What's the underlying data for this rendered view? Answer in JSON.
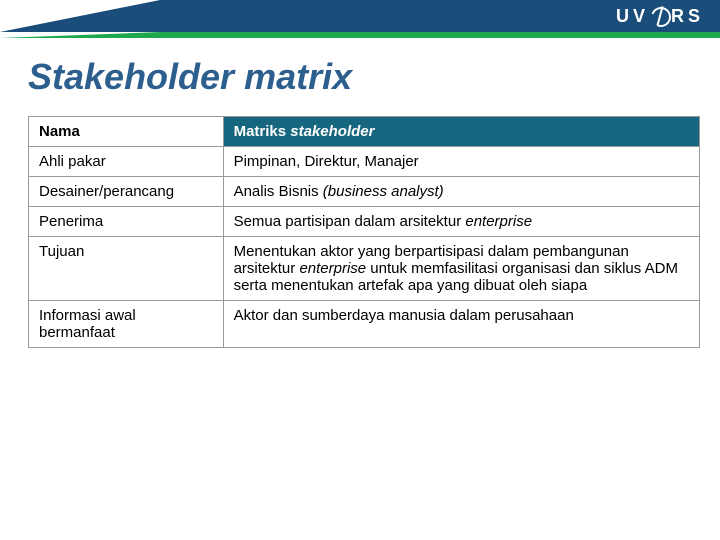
{
  "header": {
    "logo_text": "UV",
    "logo_suffix": "RS",
    "title": "Stakeholder matrix"
  },
  "colors": {
    "banner_blue": "#1a4d7a",
    "banner_green": "#1ea84e",
    "table_header_bg": "#17667f",
    "title_color": "#2d5f8e",
    "border_color": "#999999",
    "background": "#ffffff",
    "text": "#000000",
    "header_text": "#ffffff"
  },
  "table": {
    "head": {
      "col1": "Nama",
      "col2": "Matriks ",
      "col2_italic": "stakeholder"
    },
    "rows": [
      {
        "label": "Ahli pakar",
        "value": "Pimpinan, Direktur, Manajer"
      },
      {
        "label": "Desainer/perancang",
        "value_pre": "Analis Bisnis ",
        "value_italic": "(business analyst)"
      },
      {
        "label": "Penerima",
        "value_pre": "Semua partisipan dalam arsitektur ",
        "value_italic": "enterprise"
      },
      {
        "label": "Tujuan",
        "value_pre": "Menentukan aktor yang berpartisipasi dalam pembangunan arsitektur ",
        "value_italic": "enterprise",
        "value_post": " untuk memfasilitasi organisasi dan siklus ADM serta menentukan artefak apa yang dibuat oleh siapa"
      },
      {
        "label": "Informasi awal bermanfaat",
        "value": "Aktor dan sumberdaya manusia dalam perusahaan"
      }
    ]
  }
}
